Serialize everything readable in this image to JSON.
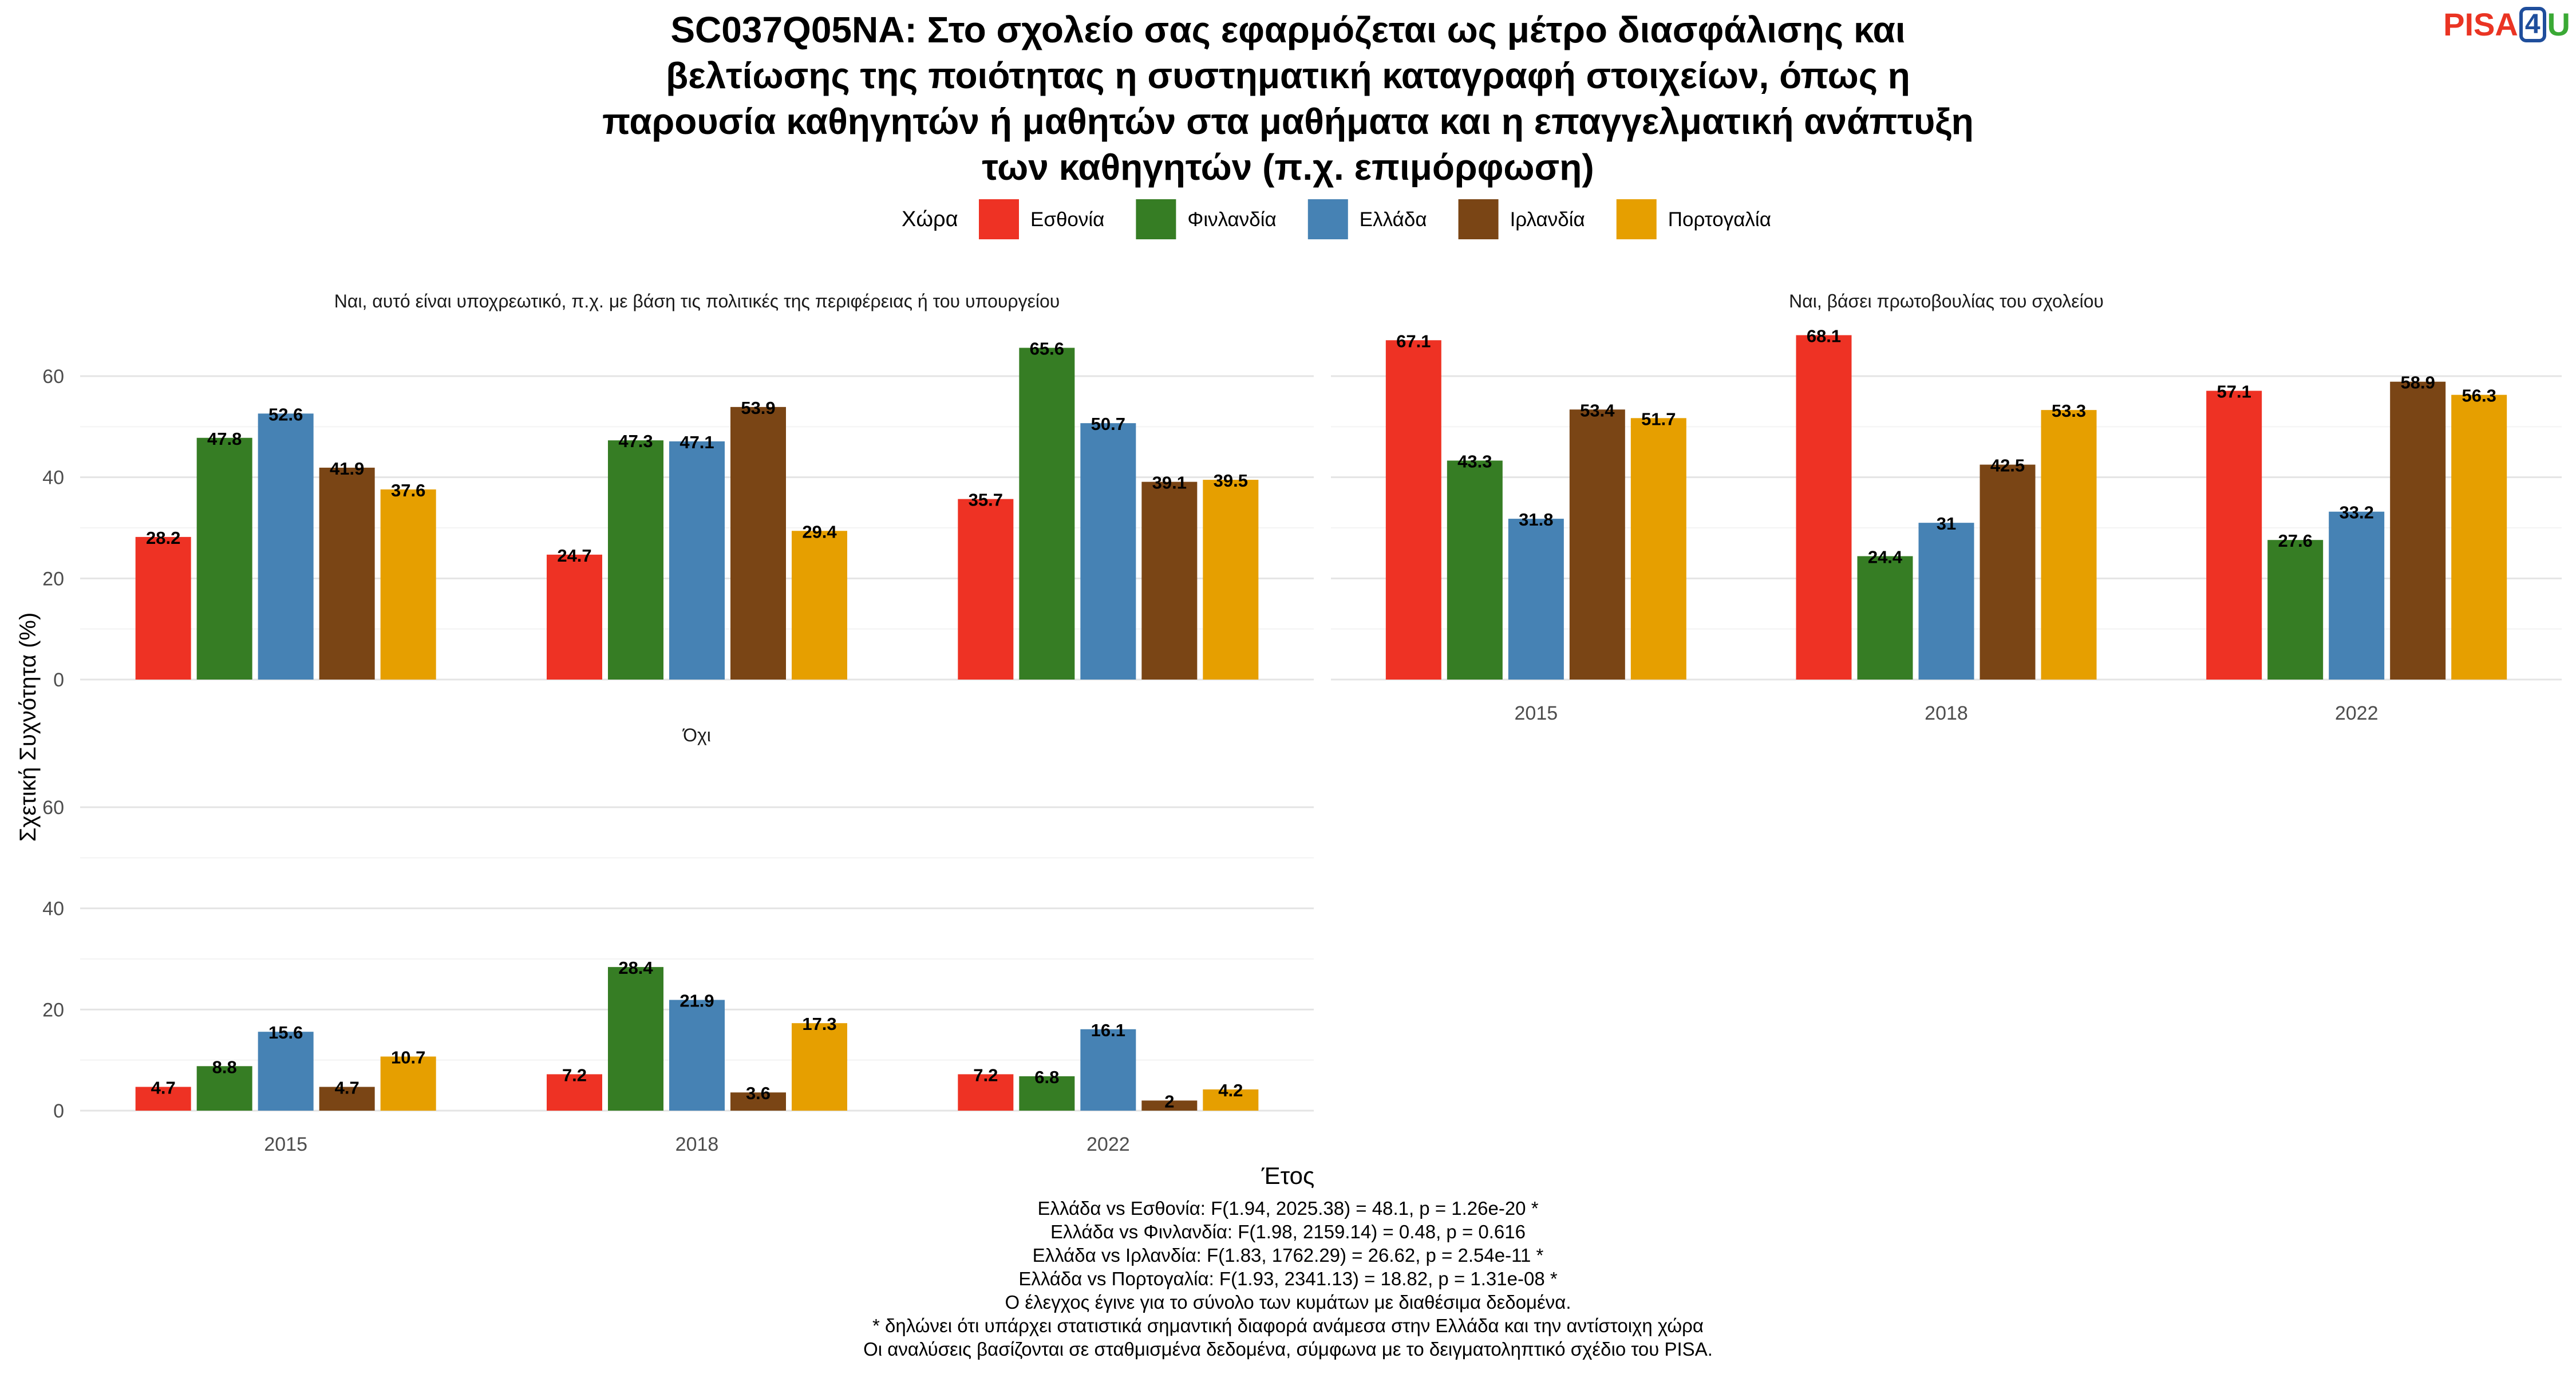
{
  "title_lines": [
    "SC037Q05NA: Στο σχολείο σας εφαρμόζεται ως μέτρο διασφάλισης και",
    "βελτίωσης της ποιότητας η συστηματική καταγραφή στοιχείων, όπως η",
    "παρουσία καθηγητών ή μαθητών στα μαθήματα και η επαγγελματική ανάπτυξη",
    "των καθηγητών (π.χ. επιμόρφωση)"
  ],
  "logo": {
    "part1": "PISA",
    "part2": "4",
    "part3": "U"
  },
  "legend": {
    "title": "Χώρα",
    "placement": "top"
  },
  "notes": [
    "Ελλάδα vs Εσθονία: F(1.94, 2025.38) = 48.1, p = 1.26e-20 *",
    "Ελλάδα vs Φινλανδία: F(1.98, 2159.14) = 0.48, p = 0.616",
    "Ελλάδα vs Ιρλανδία: F(1.83, 1762.29) = 26.62, p = 2.54e-11 *",
    "Ελλάδα vs Πορτογαλία: F(1.93, 2341.13) = 18.82, p = 1.31e-08 *",
    "Ο έλεγχος έγινε για το σύνολο των κυμάτων με διαθέσιμα δεδομένα.",
    "* δηλώνει ότι υπάρχει στατιστικά σημαντική διαφορά ανάμεσα στην Ελλάδα και την αντίστοιχη χώρα",
    "Οι αναλύσεις βασίζονται σε σταθμισμένα δεδομένα, σύμφωνα με το δειγματοληπτικό σχέδιο του PISA."
  ],
  "chart_data": {
    "type": "bar",
    "xlabel": "Έτος",
    "ylabel": "Σχετική Συχνότητα (%)",
    "ylim": [
      0,
      70
    ],
    "yticks": [
      0,
      20,
      40,
      60
    ],
    "grid": true,
    "categories": [
      "2015",
      "2018",
      "2022"
    ],
    "series": [
      {
        "name": "Εσθονία",
        "color": "#ee3224"
      },
      {
        "name": "Φινλανδία",
        "color": "#367d24"
      },
      {
        "name": "Ελλάδα",
        "color": "#4682b4"
      },
      {
        "name": "Ιρλανδία",
        "color": "#7a4515"
      },
      {
        "name": "Πορτογαλία",
        "color": "#e69f00"
      }
    ],
    "panels": [
      {
        "label": "Ναι, αυτό είναι υποχρεωτικό, π.χ. με βάση τις πολιτικές της περιφέρειας ή του υπουργείου",
        "values": [
          [
            28.2,
            24.7,
            35.7
          ],
          [
            47.8,
            47.3,
            65.6
          ],
          [
            52.6,
            47.1,
            50.7
          ],
          [
            41.9,
            53.9,
            39.1
          ],
          [
            37.6,
            29.4,
            39.5
          ]
        ]
      },
      {
        "label": "Ναι, βάσει πρωτοβουλίας του σχολείου",
        "values": [
          [
            67.1,
            68.1,
            57.1
          ],
          [
            43.3,
            24.4,
            27.6
          ],
          [
            31.8,
            31,
            33.2
          ],
          [
            53.4,
            42.5,
            58.9
          ],
          [
            51.7,
            53.3,
            56.3
          ]
        ]
      },
      {
        "label": "Όχι",
        "values": [
          [
            4.7,
            7.2,
            7.2
          ],
          [
            8.8,
            28.4,
            6.8
          ],
          [
            15.6,
            21.9,
            16.1
          ],
          [
            4.7,
            3.6,
            2
          ],
          [
            10.7,
            17.3,
            4.2
          ]
        ]
      }
    ]
  }
}
